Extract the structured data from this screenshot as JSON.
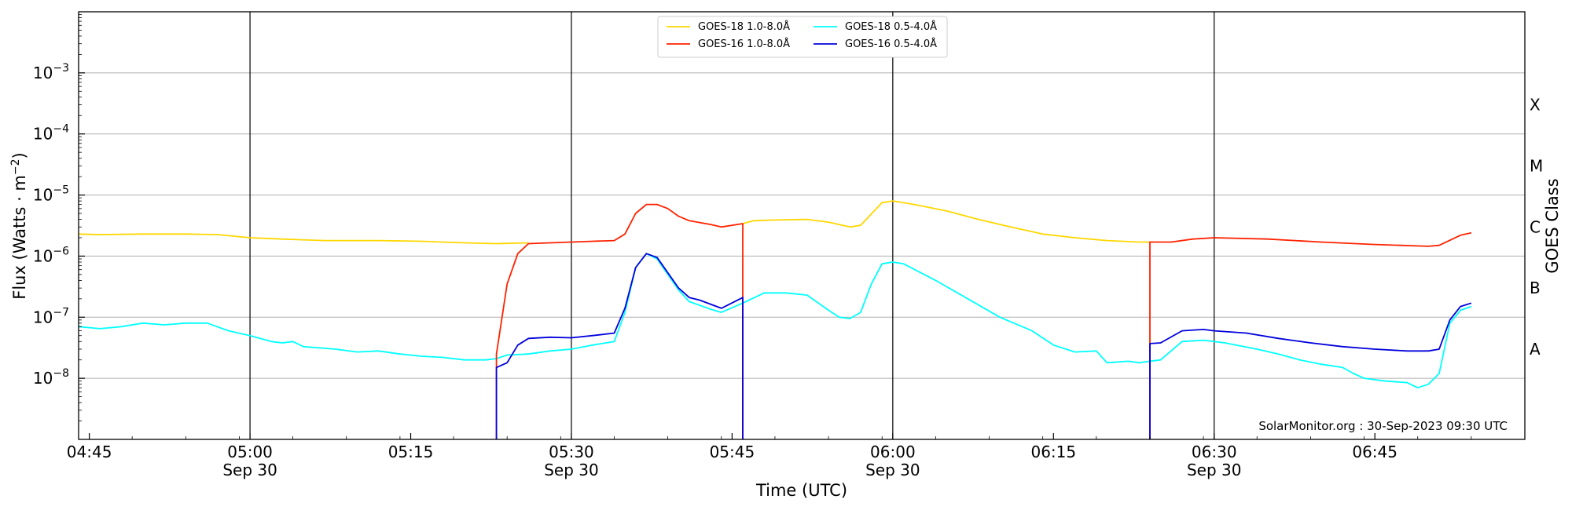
{
  "chart_data": {
    "type": "line",
    "xlabel": "Time (UTC)",
    "ylabel_main": "Flux (Watts · m",
    "ylabel_sup": "−2",
    "ylabel_close": ")",
    "right_label": "GOES Class",
    "credit": "SolarMonitor.org : 30-Sep-2023 09:30 UTC",
    "y_scale": "log",
    "ylim": [
      1e-09,
      0.01
    ],
    "xlim": [
      "04:44",
      "06:59"
    ],
    "grid": "horizontal",
    "legend_position": "top-center",
    "y_ticks": [
      {
        "value": 1e-08,
        "base": "10",
        "exp": "−8"
      },
      {
        "value": 1e-07,
        "base": "10",
        "exp": "−7"
      },
      {
        "value": 1e-06,
        "base": "10",
        "exp": "−6"
      },
      {
        "value": 1e-05,
        "base": "10",
        "exp": "−5"
      },
      {
        "value": 0.0001,
        "base": "10",
        "exp": "−4"
      },
      {
        "value": 0.001,
        "base": "10",
        "exp": "−3"
      }
    ],
    "x_ticks": [
      {
        "time": "04:45",
        "label": "04:45",
        "date": ""
      },
      {
        "time": "05:00",
        "label": "05:00",
        "date": "Sep 30"
      },
      {
        "time": "05:15",
        "label": "05:15",
        "date": ""
      },
      {
        "time": "05:30",
        "label": "05:30",
        "date": "Sep 30"
      },
      {
        "time": "05:45",
        "label": "05:45",
        "date": ""
      },
      {
        "time": "06:00",
        "label": "06:00",
        "date": "Sep 30"
      },
      {
        "time": "06:15",
        "label": "06:15",
        "date": ""
      },
      {
        "time": "06:30",
        "label": "06:30",
        "date": "Sep 30"
      },
      {
        "time": "06:45",
        "label": "06:45",
        "date": ""
      }
    ],
    "vertical_lines": [
      "05:00",
      "05:30",
      "06:00",
      "06:30"
    ],
    "goes_classes": [
      {
        "label": "A",
        "value": 3e-08
      },
      {
        "label": "B",
        "value": 3e-07
      },
      {
        "label": "C",
        "value": 3e-06
      },
      {
        "label": "M",
        "value": 3e-05
      },
      {
        "label": "X",
        "value": 0.0003
      }
    ],
    "series": [
      {
        "name": "GOES-18 1.0-8.0Å",
        "color": "#FFD700",
        "points": [
          [
            "04:44",
            2.3e-06
          ],
          [
            "04:46",
            2.25e-06
          ],
          [
            "04:50",
            2.3e-06
          ],
          [
            "04:54",
            2.3e-06
          ],
          [
            "04:57",
            2.25e-06
          ],
          [
            "05:00",
            2e-06
          ],
          [
            "05:03",
            1.9e-06
          ],
          [
            "05:07",
            1.8e-06
          ],
          [
            "05:12",
            1.8e-06
          ],
          [
            "05:16",
            1.75e-06
          ],
          [
            "05:20",
            1.65e-06
          ],
          [
            "05:23",
            1.6e-06
          ],
          [
            "05:26",
            1.65e-06
          ]
        ]
      },
      {
        "name": "GOES-18 1.0-8.0Å",
        "color": "#FFD700",
        "points": [
          [
            "05:46",
            3.4e-06
          ],
          [
            "05:47",
            3.8e-06
          ],
          [
            "05:49",
            3.9e-06
          ],
          [
            "05:52",
            4e-06
          ],
          [
            "05:54",
            3.6e-06
          ],
          [
            "05:56",
            3e-06
          ],
          [
            "05:57",
            3.2e-06
          ],
          [
            "05:59",
            7.5e-06
          ],
          [
            "06:00",
            8e-06
          ],
          [
            "06:02",
            7e-06
          ],
          [
            "06:05",
            5.5e-06
          ],
          [
            "06:08",
            4e-06
          ],
          [
            "06:11",
            3e-06
          ],
          [
            "06:14",
            2.3e-06
          ],
          [
            "06:17",
            2e-06
          ],
          [
            "06:20",
            1.8e-06
          ],
          [
            "06:23",
            1.7e-06
          ],
          [
            "06:24",
            1.7e-06
          ]
        ]
      },
      {
        "name": "GOES-18 0.5-4.0Å",
        "color": "#00FFFF",
        "points": [
          [
            "04:44",
            7e-08
          ],
          [
            "04:46",
            6.5e-08
          ],
          [
            "04:48",
            7e-08
          ],
          [
            "04:50",
            8e-08
          ],
          [
            "04:52",
            7.5e-08
          ],
          [
            "04:54",
            8e-08
          ],
          [
            "04:56",
            8e-08
          ],
          [
            "04:58",
            6e-08
          ],
          [
            "05:00",
            5e-08
          ],
          [
            "05:02",
            4e-08
          ],
          [
            "05:03",
            3.8e-08
          ],
          [
            "05:04",
            4e-08
          ],
          [
            "05:05",
            3.3e-08
          ],
          [
            "05:08",
            3e-08
          ],
          [
            "05:10",
            2.7e-08
          ],
          [
            "05:12",
            2.8e-08
          ],
          [
            "05:14",
            2.5e-08
          ],
          [
            "05:16",
            2.3e-08
          ],
          [
            "05:18",
            2.2e-08
          ],
          [
            "05:20",
            2e-08
          ],
          [
            "05:22",
            2e-08
          ],
          [
            "05:23",
            2.1e-08
          ],
          [
            "05:24",
            2.4e-08
          ],
          [
            "05:26",
            2.5e-08
          ],
          [
            "05:28",
            2.8e-08
          ],
          [
            "05:30",
            3e-08
          ],
          [
            "05:32",
            3.5e-08
          ],
          [
            "05:34",
            4e-08
          ],
          [
            "05:35",
            1.2e-07
          ],
          [
            "05:36",
            6.5e-07
          ],
          [
            "05:37",
            1.1e-06
          ],
          [
            "05:38",
            9e-07
          ],
          [
            "05:40",
            2.8e-07
          ],
          [
            "05:41",
            1.8e-07
          ],
          [
            "05:43",
            1.35e-07
          ],
          [
            "05:44",
            1.2e-07
          ],
          [
            "05:46",
            1.7e-07
          ],
          [
            "05:48",
            2.5e-07
          ],
          [
            "05:50",
            2.5e-07
          ],
          [
            "05:52",
            2.3e-07
          ],
          [
            "05:54",
            1.3e-07
          ],
          [
            "05:55",
            1e-07
          ],
          [
            "05:56",
            9.5e-08
          ],
          [
            "05:57",
            1.2e-07
          ],
          [
            "05:58",
            3.5e-07
          ],
          [
            "05:59",
            7.5e-07
          ],
          [
            "06:00",
            8e-07
          ],
          [
            "06:01",
            7.5e-07
          ],
          [
            "06:04",
            4e-07
          ],
          [
            "06:07",
            2e-07
          ],
          [
            "06:10",
            1e-07
          ],
          [
            "06:13",
            6e-08
          ],
          [
            "06:15",
            3.5e-08
          ],
          [
            "06:17",
            2.7e-08
          ],
          [
            "06:19",
            2.8e-08
          ],
          [
            "06:20",
            1.8e-08
          ],
          [
            "06:22",
            1.9e-08
          ],
          [
            "06:23",
            1.8e-08
          ],
          [
            "06:24",
            1.9e-08
          ],
          [
            "06:25",
            2e-08
          ],
          [
            "06:27",
            4e-08
          ],
          [
            "06:29",
            4.2e-08
          ],
          [
            "06:31",
            3.8e-08
          ],
          [
            "06:34",
            3e-08
          ],
          [
            "06:36",
            2.5e-08
          ],
          [
            "06:38",
            2e-08
          ],
          [
            "06:40",
            1.7e-08
          ],
          [
            "06:42",
            1.5e-08
          ],
          [
            "06:43",
            1.2e-08
          ],
          [
            "06:44",
            1e-08
          ],
          [
            "06:46",
            9e-09
          ],
          [
            "06:48",
            8.5e-09
          ],
          [
            "06:49",
            7e-09
          ],
          [
            "06:50",
            8e-09
          ],
          [
            "06:51",
            1.2e-08
          ],
          [
            "06:52",
            8e-08
          ],
          [
            "06:53",
            1.3e-07
          ],
          [
            "06:54",
            1.5e-07
          ]
        ]
      },
      {
        "name": "GOES-16 1.0-8.0Å",
        "color": "#FF2200",
        "points": [
          [
            "05:23",
            1e-09
          ],
          [
            "05:23",
            2.5e-08
          ],
          [
            "05:24",
            3.5e-07
          ],
          [
            "05:25",
            1.1e-06
          ],
          [
            "05:26",
            1.6e-06
          ],
          [
            "05:30",
            1.7e-06
          ],
          [
            "05:32",
            1.75e-06
          ],
          [
            "05:34",
            1.8e-06
          ],
          [
            "05:35",
            2.3e-06
          ],
          [
            "05:36",
            5e-06
          ],
          [
            "05:37",
            7e-06
          ],
          [
            "05:38",
            7e-06
          ],
          [
            "05:39",
            6e-06
          ],
          [
            "05:40",
            4.5e-06
          ],
          [
            "05:41",
            3.8e-06
          ],
          [
            "05:43",
            3.3e-06
          ],
          [
            "05:44",
            3e-06
          ],
          [
            "05:46",
            3.4e-06
          ],
          [
            "05:46",
            1e-09
          ]
        ]
      },
      {
        "name": "GOES-16 1.0-8.0Å",
        "color": "#FF2200",
        "points": [
          [
            "06:24",
            1e-09
          ],
          [
            "06:24",
            1.7e-06
          ],
          [
            "06:26",
            1.7e-06
          ],
          [
            "06:28",
            1.9e-06
          ],
          [
            "06:30",
            2e-06
          ],
          [
            "06:35",
            1.9e-06
          ],
          [
            "06:40",
            1.7e-06
          ],
          [
            "06:45",
            1.55e-06
          ],
          [
            "06:50",
            1.45e-06
          ],
          [
            "06:51",
            1.5e-06
          ],
          [
            "06:53",
            2.2e-06
          ],
          [
            "06:54",
            2.4e-06
          ]
        ]
      },
      {
        "name": "GOES-16 0.5-4.0Å",
        "color": "#0000DD",
        "points": [
          [
            "05:23",
            1e-09
          ],
          [
            "05:23",
            1.5e-08
          ],
          [
            "05:24",
            1.8e-08
          ],
          [
            "05:25",
            3.5e-08
          ],
          [
            "05:26",
            4.5e-08
          ],
          [
            "05:28",
            4.7e-08
          ],
          [
            "05:30",
            4.6e-08
          ],
          [
            "05:32",
            5e-08
          ],
          [
            "05:34",
            5.5e-08
          ],
          [
            "05:35",
            1.4e-07
          ],
          [
            "05:36",
            6.5e-07
          ],
          [
            "05:37",
            1.1e-06
          ],
          [
            "05:38",
            9.5e-07
          ],
          [
            "05:40",
            3e-07
          ],
          [
            "05:41",
            2.1e-07
          ],
          [
            "05:42",
            1.9e-07
          ],
          [
            "05:44",
            1.4e-07
          ],
          [
            "05:46",
            2.1e-07
          ],
          [
            "05:46",
            1e-09
          ]
        ]
      },
      {
        "name": "GOES-16 0.5-4.0Å",
        "color": "#0000DD",
        "points": [
          [
            "06:24",
            1e-09
          ],
          [
            "06:24",
            3.7e-08
          ],
          [
            "06:25",
            3.8e-08
          ],
          [
            "06:27",
            6e-08
          ],
          [
            "06:29",
            6.3e-08
          ],
          [
            "06:30",
            6e-08
          ],
          [
            "06:33",
            5.5e-08
          ],
          [
            "06:36",
            4.5e-08
          ],
          [
            "06:39",
            3.8e-08
          ],
          [
            "06:42",
            3.3e-08
          ],
          [
            "06:45",
            3e-08
          ],
          [
            "06:48",
            2.8e-08
          ],
          [
            "06:50",
            2.8e-08
          ],
          [
            "06:51",
            3e-08
          ],
          [
            "06:52",
            9e-08
          ],
          [
            "06:53",
            1.5e-07
          ],
          [
            "06:54",
            1.7e-07
          ]
        ]
      }
    ],
    "legend": [
      {
        "label": "GOES-18 1.0-8.0Å",
        "color": "#FFD700"
      },
      {
        "label": "GOES-16 1.0-8.0Å",
        "color": "#FF2200"
      },
      {
        "label": "GOES-18 0.5-4.0Å",
        "color": "#00FFFF"
      },
      {
        "label": "GOES-16 0.5-4.0Å",
        "color": "#0000DD"
      }
    ]
  }
}
